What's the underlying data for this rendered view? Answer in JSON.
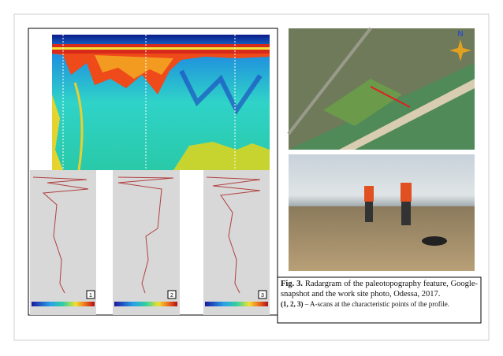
{
  "figure": {
    "ascan_labels": [
      "1",
      "2",
      "3"
    ],
    "map": {
      "compass": "N"
    },
    "caption": {
      "label": "Fig. 3.",
      "text": "Radargram of the paleotopography feature, Google-snapshot and the work site photo, Odessa, 2017.",
      "points": "(1, 2, 3)",
      "points_text": "– A-scans at the characteristic points of the profile."
    }
  }
}
